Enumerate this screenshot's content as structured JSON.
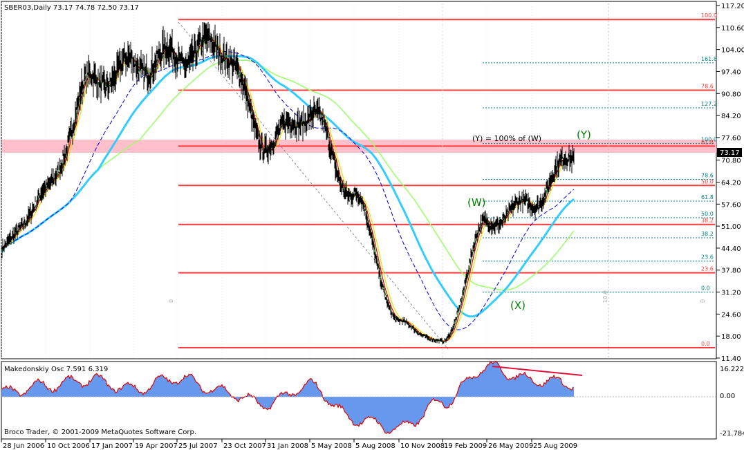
{
  "header": {
    "symbol_line": "SBER03,Daily  73.17 74.78 72.50 73.17"
  },
  "osc": {
    "label": "Makedonskiy Osc 7.591 6.319",
    "ticks": [
      "16.222",
      "0.00",
      "-21.784"
    ]
  },
  "footer": {
    "copyright": "Broco Trader, © 2001-2009 MetaQuotes Software Corp."
  },
  "price_marker": "73.17",
  "annotations": {
    "y_eq": "(Y) = 100% of (W)",
    "w": "(W)",
    "x": "(X)",
    "y": "(Y)",
    "v1": "0",
    "v2": "10.0",
    "v3": "0"
  },
  "colors": {
    "fib_red": "#ff3b3b",
    "fib_teal": "#008080",
    "ma_yellow": "#e8e000",
    "ma_red": "#e00000",
    "ma_green": "#008000",
    "ma_cyan": "#33ccff",
    "ma_blue": "#0000dd",
    "ma_lightgreen": "#99ff66",
    "osc_fill": "#6699ee",
    "zone_pink": "#ffc0cb",
    "wave_label": "#008000"
  },
  "chart_data": {
    "type": "line",
    "title": "SBER03,Daily",
    "x_ticks": [
      "28 Jun 2006",
      "10 Oct 2006",
      "17 Jan 2007",
      "19 Apr 2007",
      "25 Jul 2007",
      "23 Oct 2007",
      "31 Jan 2008",
      "5 May 2008",
      "5 Aug 2008",
      "10 Nov 2008",
      "19 Feb 2009",
      "26 May 2009",
      "25 Aug 2009"
    ],
    "y_ticks": [
      "117.20",
      "110.60",
      "104.00",
      "97.40",
      "90.80",
      "84.20",
      "77.60",
      "70.80",
      "64.20",
      "57.60",
      "51.00",
      "44.40",
      "37.80",
      "31.20",
      "24.60",
      "18.00",
      "11.40"
    ],
    "ylim": [
      11.4,
      117.2
    ],
    "last_price": 73.17,
    "fib_retracement_red": [
      {
        "label": "100.0",
        "value": 113.0
      },
      {
        "label": "78.6",
        "value": 91.8
      },
      {
        "label": "61.8",
        "value": 75.0
      },
      {
        "label": "50.0",
        "value": 63.2
      },
      {
        "label": "38.2",
        "value": 51.5
      },
      {
        "label": "23.6",
        "value": 37.0
      },
      {
        "label": "0.0",
        "value": 14.5
      }
    ],
    "fib_extension_teal": [
      {
        "label": "161.8",
        "value": 100.0
      },
      {
        "label": "127.2",
        "value": 86.5
      },
      {
        "label": "100.0",
        "value": 75.8
      },
      {
        "label": "78.6",
        "value": 65.0
      },
      {
        "label": "61.8",
        "value": 58.5
      },
      {
        "label": "50.0",
        "value": 53.5
      },
      {
        "label": "38.2",
        "value": 47.5
      },
      {
        "label": "23.6",
        "value": 40.5
      },
      {
        "label": "0.0",
        "value": 31.2
      }
    ],
    "price_series": {
      "name": "SBER03",
      "x": [
        "28 Jun 2006",
        "10 Oct 2006",
        "17 Jan 2007",
        "19 Apr 2007",
        "25 Jul 2007",
        "23 Oct 2007",
        "31 Jan 2008",
        "5 May 2008",
        "5 Aug 2008",
        "10 Nov 2008",
        "19 Feb 2009",
        "26 May 2009",
        "25 Aug 2009",
        "Oct 2009"
      ],
      "values": [
        44,
        61,
        94,
        99,
        102,
        105,
        76,
        85,
        60,
        22,
        16,
        52,
        58,
        73
      ]
    },
    "osc_series": {
      "name": "Makedonskiy Osc",
      "x": [
        "28 Jun 2006",
        "10 Oct 2006",
        "17 Jan 2007",
        "19 Apr 2007",
        "25 Jul 2007",
        "23 Oct 2007",
        "31 Jan 2008",
        "5 May 2008",
        "5 Aug 2008",
        "10 Nov 2008",
        "19 Feb 2009",
        "26 May 2009",
        "25 Aug 2009",
        "Oct 2009"
      ],
      "values": [
        2,
        6,
        9,
        4,
        10,
        3,
        -4,
        6,
        -12,
        -17,
        -3,
        16,
        9,
        7
      ],
      "ylim": [
        -21.784,
        16.222
      ]
    }
  }
}
